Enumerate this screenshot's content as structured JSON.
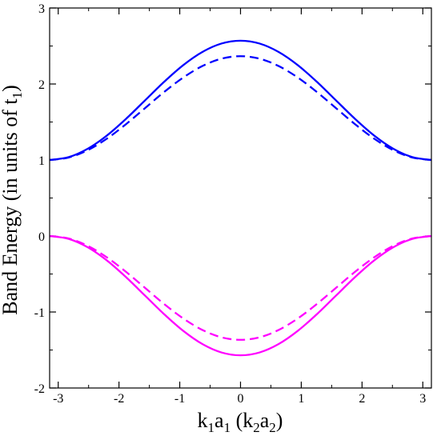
{
  "chart_data": {
    "type": "line",
    "title": "",
    "xlabel": {
      "parts": [
        {
          "text": "k",
          "sub": false
        },
        {
          "text": "1",
          "sub": true
        },
        {
          "text": "a",
          "sub": false
        },
        {
          "text": "1",
          "sub": true
        },
        {
          "text": " (k",
          "sub": false
        },
        {
          "text": "2",
          "sub": true
        },
        {
          "text": "a",
          "sub": false
        },
        {
          "text": "2",
          "sub": true
        },
        {
          "text": ")",
          "sub": false
        }
      ]
    },
    "ylabel": {
      "parts": [
        {
          "text": "Band Energy (in units of t",
          "sub": false
        },
        {
          "text": "1",
          "sub": true
        },
        {
          "text": ")",
          "sub": false
        }
      ]
    },
    "xlim": [
      -3.14159,
      3.14159
    ],
    "ylim": [
      -2,
      3
    ],
    "xticks": [
      -3,
      -2,
      -1,
      0,
      1,
      2,
      3
    ],
    "yticks": [
      -2,
      -1,
      0,
      1,
      2,
      3
    ],
    "grid": false,
    "legend": "none",
    "x": [
      -3.14159,
      -2.82743,
      -2.51327,
      -2.19911,
      -1.88496,
      -1.5708,
      -1.25664,
      -0.94248,
      -0.62832,
      -0.31416,
      0,
      0.31416,
      0.62832,
      0.94248,
      1.25664,
      1.5708,
      1.88496,
      2.19911,
      2.51327,
      2.82743,
      3.14159
    ],
    "series": [
      {
        "style": "solid",
        "color": "#0000ff",
        "values": [
          1.0,
          1.038,
          1.149,
          1.322,
          1.541,
          1.785,
          2.029,
          2.248,
          2.421,
          2.532,
          2.57,
          2.532,
          2.421,
          2.248,
          2.029,
          1.785,
          1.541,
          1.322,
          1.149,
          1.038,
          1.0
        ]
      },
      {
        "style": "dashed",
        "color": "#0000ff",
        "values": [
          1.0,
          1.033,
          1.13,
          1.281,
          1.471,
          1.683,
          1.895,
          2.085,
          2.236,
          2.333,
          2.366,
          2.333,
          2.236,
          2.085,
          1.895,
          1.683,
          1.471,
          1.281,
          1.13,
          1.033,
          1.0
        ]
      },
      {
        "style": "solid",
        "color": "#ff00ff",
        "values": [
          0.0,
          -0.038,
          -0.149,
          -0.322,
          -0.541,
          -0.785,
          -1.029,
          -1.248,
          -1.421,
          -1.532,
          -1.57,
          -1.532,
          -1.421,
          -1.248,
          -1.029,
          -0.785,
          -0.541,
          -0.322,
          -0.149,
          -0.038,
          0.0
        ]
      },
      {
        "style": "dashed",
        "color": "#ff00ff",
        "values": [
          0.0,
          -0.033,
          -0.13,
          -0.281,
          -0.471,
          -0.683,
          -0.895,
          -1.085,
          -1.236,
          -1.333,
          -1.366,
          -1.333,
          -1.236,
          -1.085,
          -0.895,
          -0.683,
          -0.471,
          -0.281,
          -0.13,
          -0.033,
          0.0
        ]
      }
    ]
  }
}
